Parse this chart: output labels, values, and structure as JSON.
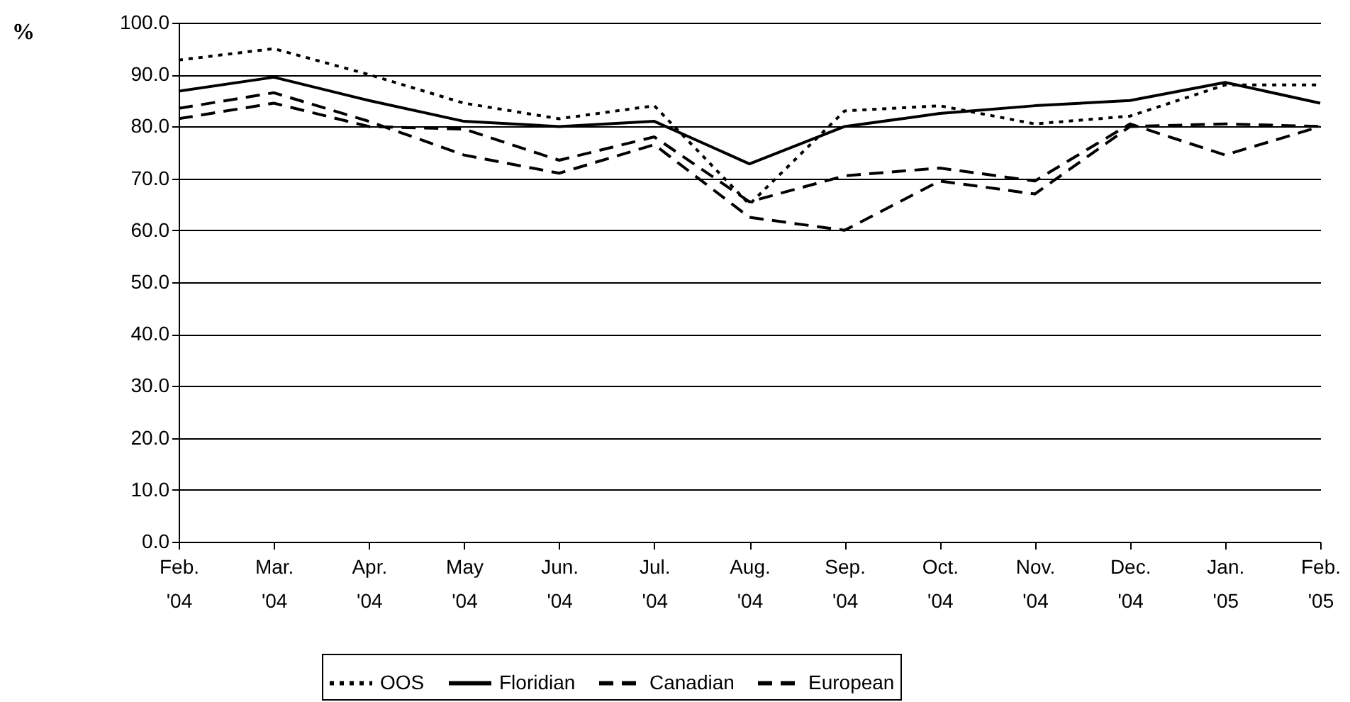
{
  "chart_data": {
    "type": "line",
    "ylabel": "%",
    "categories": [
      "Feb. '04",
      "Mar. '04",
      "Apr. '04",
      "May '04",
      "Jun. '04",
      "Jul. '04",
      "Aug. '04",
      "Sep. '04",
      "Oct. '04",
      "Nov. '04",
      "Dec. '04",
      "Jan. '05",
      "Feb. '05"
    ],
    "series": [
      {
        "name": "OOS",
        "color": "#000000",
        "line_style": "dotted",
        "values": [
          92.8,
          95,
          90,
          84.5,
          81.5,
          84,
          65,
          83,
          84,
          80.5,
          82,
          88,
          88
        ]
      },
      {
        "name": "Floridian",
        "color": "#000000",
        "line_style": "solid",
        "values": [
          86.8,
          89.5,
          85,
          81,
          80,
          81,
          72.8,
          80,
          82.5,
          84,
          85,
          88.5,
          84.5
        ]
      },
      {
        "name": "Canadian",
        "color": "#000000",
        "line_style": "dashed",
        "values": [
          83.5,
          86.5,
          81,
          74.5,
          71,
          76.5,
          62.5,
          60,
          69.5,
          67,
          80,
          80.5,
          80
        ]
      },
      {
        "name": "European",
        "color": "#000000",
        "line_style": "dashed",
        "values": [
          81.5,
          84.5,
          80,
          79.5,
          73.5,
          78,
          65.5,
          70.5,
          72,
          69.5,
          80.5,
          74.5,
          80
        ]
      }
    ],
    "ylim": [
      0,
      100
    ],
    "yticks": [
      {
        "value": 0,
        "label": "0.0"
      },
      {
        "value": 10,
        "label": "10.0"
      },
      {
        "value": 20,
        "label": "20.0"
      },
      {
        "value": 30,
        "label": "30.0"
      },
      {
        "value": 40,
        "label": "40.0"
      },
      {
        "value": 50,
        "label": "50.0"
      },
      {
        "value": 60,
        "label": "60.0"
      },
      {
        "value": 70,
        "label": "70.0"
      },
      {
        "value": 80,
        "label": "80.0"
      },
      {
        "value": 90,
        "label": "90.0"
      },
      {
        "value": 100,
        "label": "100.0"
      }
    ],
    "grid": "y",
    "legend": "bottom"
  }
}
